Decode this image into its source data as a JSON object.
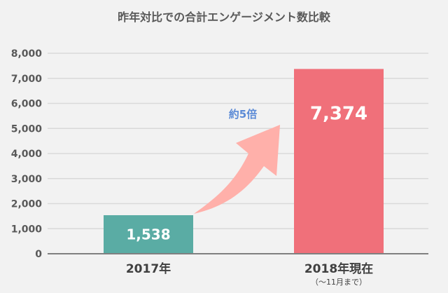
{
  "chart_data": {
    "type": "bar",
    "title": "昨年対比での合計エンゲージメント数比較",
    "categories": [
      "2017年",
      "2018年現在"
    ],
    "category_notes": [
      "",
      "（～11月まで）"
    ],
    "values": [
      1538,
      7374
    ],
    "data_labels": [
      "1,538",
      "7,374"
    ],
    "bar_colors": [
      "#5aaca4",
      "#f0707a"
    ],
    "ylim": [
      0,
      8000
    ],
    "yticks": [
      0,
      1000,
      2000,
      3000,
      4000,
      5000,
      6000,
      7000,
      8000
    ],
    "ytick_labels": [
      "0",
      "1,000",
      "2,000",
      "3,000",
      "4,000",
      "5,000",
      "6,000",
      "7,000",
      "8,000"
    ],
    "grid": true,
    "xlabel": "",
    "ylabel": "",
    "annotation": {
      "text": "約5倍",
      "color": "#5b8ad6",
      "arrow_color": "#ffb0aa"
    }
  }
}
